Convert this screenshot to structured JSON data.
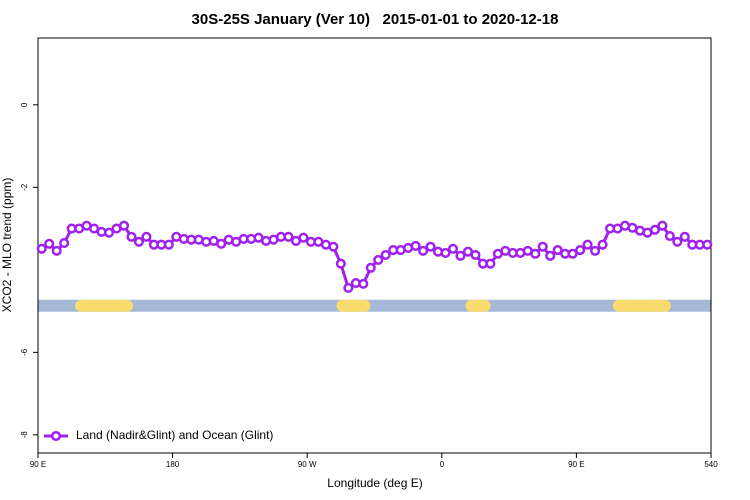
{
  "chart_data": {
    "type": "line",
    "title": "30S-25S January (Ver 10)   2015-01-01 to 2020-12-18",
    "xlabel": "Longitude (deg E)",
    "ylabel": "XCO2 - MLO trend (ppm)",
    "xlim": [
      90,
      540
    ],
    "ylim": [
      -8.44,
      1.62
    ],
    "xticks": [
      {
        "value": 90,
        "label": "90 E"
      },
      180,
      {
        "value": 270,
        "label": "90 W"
      },
      {
        "value": 360,
        "label": "0"
      },
      {
        "value": 450,
        "label": "90 E"
      },
      540
    ],
    "yticks": [
      0,
      -2,
      -6,
      -8
    ],
    "legend": "bottom-left",
    "x": [
      92.5,
      97.5,
      102.5,
      107.5,
      112.5,
      117.5,
      122.5,
      127.5,
      132.5,
      137.5,
      142.5,
      147.5,
      152.5,
      157.5,
      162.5,
      167.5,
      172.5,
      177.5,
      182.5,
      187.5,
      192.5,
      197.5,
      202.5,
      207.5,
      212.5,
      217.5,
      222.5,
      227.5,
      232.5,
      237.5,
      242.5,
      247.5,
      252.5,
      257.5,
      262.5,
      267.5,
      272.5,
      277.5,
      282.5,
      287.5,
      292.5,
      297.5,
      302.5,
      307.5,
      312.5,
      317.5,
      322.5,
      327.5,
      332.5,
      337.5,
      342.5,
      347.5,
      352.5,
      357.5,
      362.5,
      367.5,
      372.5,
      377.5,
      382.5,
      387.5,
      392.5,
      397.5,
      402.5,
      407.5,
      412.5,
      417.5,
      422.5,
      427.5,
      432.5,
      437.5,
      442.5,
      447.5,
      452.5,
      457.5,
      462.5,
      467.5,
      472.5,
      477.5,
      482.5,
      487.5,
      492.5,
      497.5,
      502.5,
      507.5,
      512.5,
      517.5,
      522.5,
      527.5,
      532.5,
      537.5
    ],
    "series": [
      {
        "name": "Land (Nadir&Glint) and Ocean (Glint)",
        "color": "#a020f0",
        "values": [
          -3.49,
          -3.37,
          -3.54,
          -3.35,
          -3.0,
          -3.0,
          -2.93,
          -3.0,
          -3.08,
          -3.1,
          -3.0,
          -2.93,
          -3.2,
          -3.32,
          -3.2,
          -3.39,
          -3.39,
          -3.39,
          -3.2,
          -3.25,
          -3.27,
          -3.27,
          -3.32,
          -3.3,
          -3.37,
          -3.27,
          -3.32,
          -3.25,
          -3.25,
          -3.22,
          -3.3,
          -3.27,
          -3.2,
          -3.2,
          -3.3,
          -3.22,
          -3.32,
          -3.32,
          -3.39,
          -3.44,
          -3.85,
          -4.44,
          -4.32,
          -4.34,
          -3.95,
          -3.76,
          -3.64,
          -3.52,
          -3.52,
          -3.47,
          -3.42,
          -3.54,
          -3.44,
          -3.56,
          -3.59,
          -3.49,
          -3.66,
          -3.56,
          -3.64,
          -3.85,
          -3.85,
          -3.61,
          -3.54,
          -3.59,
          -3.59,
          -3.54,
          -3.61,
          -3.44,
          -3.66,
          -3.52,
          -3.61,
          -3.61,
          -3.52,
          -3.39,
          -3.54,
          -3.39,
          -3.0,
          -3.0,
          -2.93,
          -2.98,
          -3.05,
          -3.1,
          -3.03,
          -2.93,
          -3.18,
          -3.32,
          -3.2,
          -3.39,
          -3.39,
          -3.39
        ]
      }
    ],
    "band": {
      "y": -4.87,
      "ocean_color": "#a4b9d6",
      "land_color": "#fadb6e",
      "land": [
        [
          114.8,
          153.6
        ],
        [
          289.6,
          312.3
        ],
        [
          375.9,
          392.7
        ],
        [
          474.4,
          513.2
        ]
      ]
    }
  }
}
